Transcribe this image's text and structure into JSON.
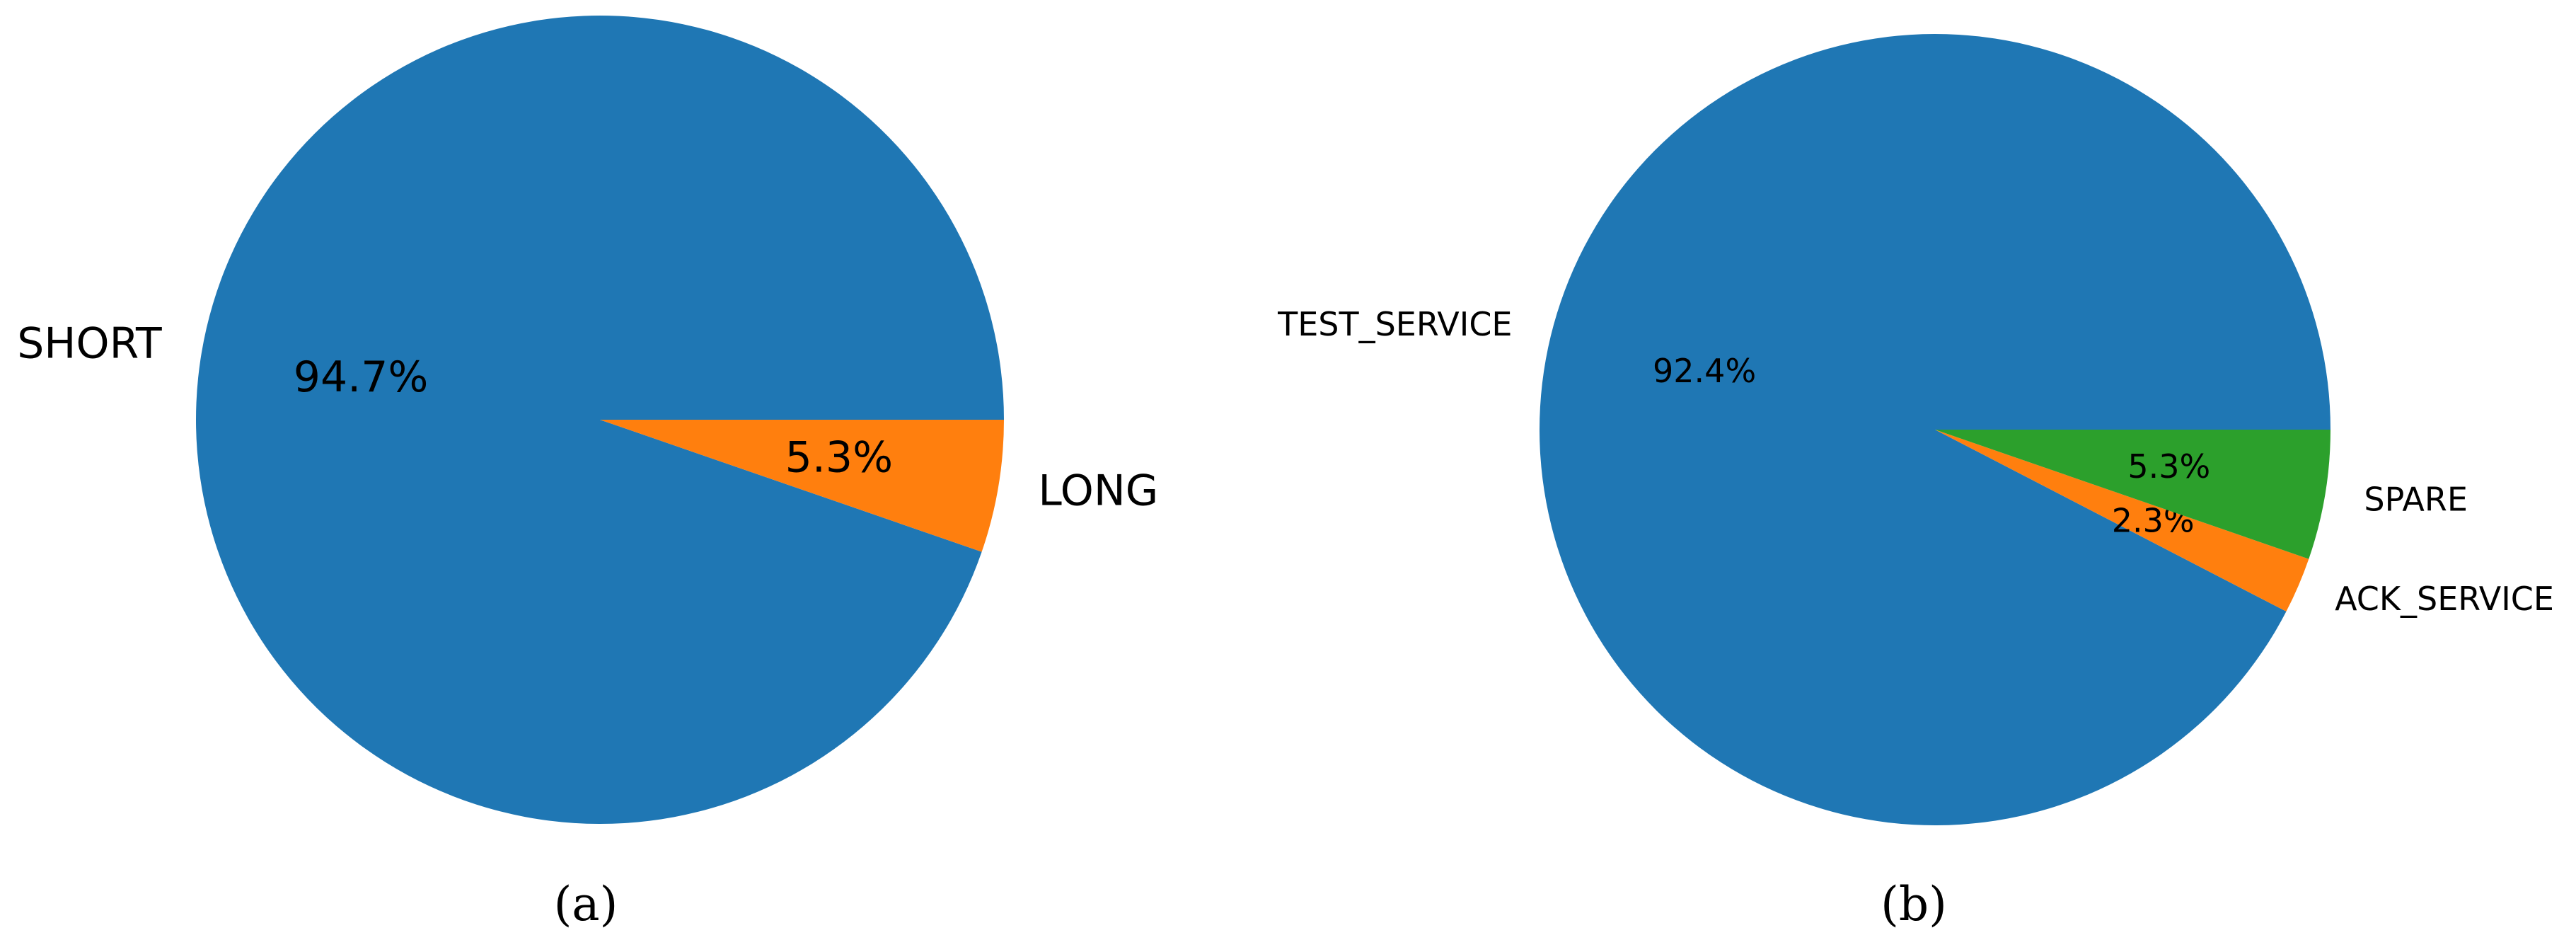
{
  "chart_data": [
    {
      "type": "pie",
      "caption": "(a)",
      "start_angle": 0,
      "direction": "counterclockwise",
      "slices": [
        {
          "label": "SHORT",
          "value": 94.7,
          "pct_label": "94.7%",
          "color": "#1f77b4"
        },
        {
          "label": "LONG",
          "value": 5.3,
          "pct_label": "5.3%",
          "color": "#ff7f0e"
        }
      ]
    },
    {
      "type": "pie",
      "caption": "(b)",
      "start_angle": 0,
      "direction": "counterclockwise",
      "slices": [
        {
          "label": "TEST_SERVICE",
          "value": 92.4,
          "pct_label": "92.4%",
          "color": "#1f77b4"
        },
        {
          "label": "ACK_SERVICE",
          "value": 2.3,
          "pct_label": "2.3%",
          "color": "#ff7f0e"
        },
        {
          "label": "SPARE",
          "value": 5.3,
          "pct_label": "5.3%",
          "color": "#2ca02c"
        }
      ]
    }
  ]
}
